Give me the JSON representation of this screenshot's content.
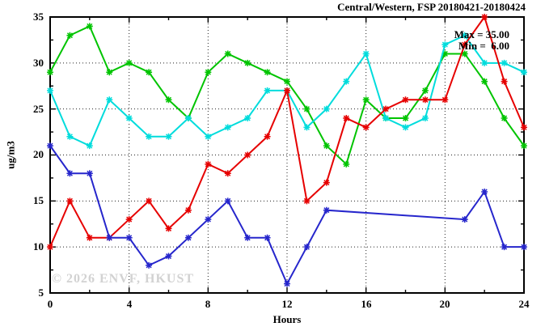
{
  "header": {
    "title": "Central/Western, FSP 20180421-20180424"
  },
  "annotations": {
    "max_label": "Max = 35.00",
    "min_label": "Min =  6.00",
    "watermark": "© 2026 ENVF, HKUST"
  },
  "chart_data": {
    "type": "line",
    "title": "Central/Western, FSP 20180421-20180424",
    "xlabel": "Hours",
    "ylabel": "ug/m3",
    "xlim": [
      0,
      24
    ],
    "ylim": [
      5,
      35
    ],
    "grid": true,
    "legend": "none",
    "x_major_ticks": [
      0,
      4,
      8,
      12,
      16,
      20,
      24
    ],
    "y_major_ticks": [
      35,
      30,
      25,
      20,
      15,
      10,
      5
    ],
    "x_minor_step": 2,
    "y_minor_step": 2.5,
    "marker": "asterisk",
    "x": [
      0,
      1,
      2,
      3,
      4,
      5,
      6,
      7,
      8,
      9,
      10,
      11,
      12,
      13,
      14,
      15,
      16,
      17,
      18,
      19,
      20,
      21,
      22,
      23,
      24
    ],
    "series": [
      {
        "name": "green",
        "color": "#00c400",
        "values": [
          29,
          33,
          34,
          29,
          30,
          29,
          26,
          24,
          29,
          31,
          30,
          29,
          28,
          25,
          21,
          19,
          26,
          24,
          24,
          27,
          31,
          31,
          28,
          24,
          21
        ]
      },
      {
        "name": "cyan",
        "color": "#00dcdc",
        "values": [
          27,
          22,
          21,
          26,
          24,
          22,
          22,
          24,
          22,
          23,
          24,
          27,
          27,
          23,
          25,
          28,
          31,
          24,
          23,
          24,
          32,
          33,
          30,
          30,
          29
        ]
      },
      {
        "name": "red",
        "color": "#e60000",
        "values": [
          10,
          15,
          11,
          11,
          13,
          15,
          12,
          14,
          19,
          18,
          20,
          22,
          27,
          15,
          17,
          24,
          23,
          25,
          26,
          26,
          26,
          32,
          35,
          28,
          23
        ]
      },
      {
        "name": "blue",
        "color": "#2626cc",
        "values": [
          21,
          18,
          18,
          11,
          11,
          8,
          9,
          11,
          13,
          15,
          11,
          11,
          6,
          10,
          14,
          null,
          null,
          null,
          null,
          null,
          null,
          13,
          16,
          10,
          10
        ]
      }
    ],
    "stats": {
      "max": 35.0,
      "min": 6.0
    }
  }
}
